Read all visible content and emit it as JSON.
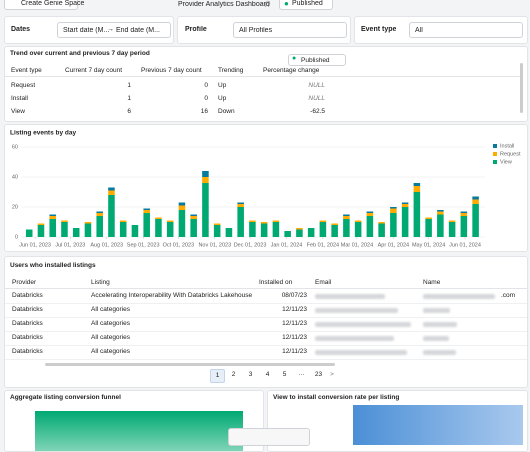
{
  "header": {
    "button": "Create Genie Space",
    "title": "Provider Analytics Dashboard",
    "status": "Published"
  },
  "filters": {
    "dates_label": "Dates",
    "start": "Start date (M...",
    "arrow": "→",
    "end": "End date (M...",
    "profile_label": "Profile",
    "profile_value": "All Profiles",
    "event_label": "Event type",
    "event_value": "All"
  },
  "trend": {
    "title": "Trend over current and previous 7 day period",
    "badge": "Published",
    "columns": [
      "Event type",
      "Current 7 day count",
      "Previous 7 day count",
      "Trending",
      "Percentage change"
    ],
    "rows": [
      [
        "Request",
        "1",
        "0",
        "Up",
        "NULL"
      ],
      [
        "Install",
        "1",
        "0",
        "Up",
        "NULL"
      ],
      [
        "View",
        "6",
        "16",
        "Down",
        "-62.5"
      ]
    ]
  },
  "chart_data": {
    "type": "bar",
    "title": "Listing events by day",
    "stacked": true,
    "x": [
      "2023-05-27",
      "2023-06-06",
      "2023-06-16",
      "2023-06-26",
      "2023-07-06",
      "2023-07-16",
      "2023-07-26",
      "2023-08-05",
      "2023-08-15",
      "2023-08-25",
      "2023-09-04",
      "2023-09-14",
      "2023-09-24",
      "2023-10-04",
      "2023-10-14",
      "2023-10-24",
      "2023-11-03",
      "2023-11-13",
      "2023-11-23",
      "2023-12-03",
      "2023-12-13",
      "2023-12-23",
      "2024-01-02",
      "2024-01-12",
      "2024-01-22",
      "2024-02-01",
      "2024-02-11",
      "2024-02-21",
      "2024-03-02",
      "2024-03-12",
      "2024-03-22",
      "2024-04-01",
      "2024-04-11",
      "2024-04-21",
      "2024-05-01",
      "2024-05-11",
      "2024-05-21",
      "2024-05-31",
      "2024-06-10"
    ],
    "series": [
      {
        "name": "View",
        "color": "#00a972",
        "values": [
          5,
          8,
          12,
          10,
          6,
          9,
          14,
          28,
          10,
          8,
          16,
          12,
          10,
          18,
          12,
          36,
          8,
          6,
          20,
          10,
          9,
          10,
          4,
          5,
          6,
          10,
          8,
          12,
          10,
          14,
          9,
          16,
          20,
          30,
          12,
          15,
          10,
          14,
          22
        ]
      },
      {
        "name": "Request",
        "color": "#ffab00",
        "values": [
          0,
          1,
          2,
          1,
          0,
          1,
          2,
          3,
          1,
          0,
          2,
          1,
          1,
          3,
          2,
          4,
          1,
          0,
          2,
          1,
          1,
          1,
          0,
          1,
          0,
          1,
          1,
          2,
          1,
          2,
          1,
          3,
          2,
          4,
          1,
          2,
          1,
          2,
          3
        ]
      },
      {
        "name": "Install",
        "color": "#077a9d",
        "values": [
          0,
          0,
          1,
          0,
          0,
          0,
          1,
          2,
          0,
          0,
          1,
          0,
          0,
          2,
          1,
          4,
          0,
          0,
          1,
          0,
          0,
          0,
          0,
          0,
          0,
          0,
          0,
          1,
          0,
          1,
          0,
          1,
          1,
          2,
          0,
          1,
          0,
          1,
          2
        ]
      }
    ],
    "legend_order": [
      "Install",
      "Request",
      "View"
    ],
    "xlim": [
      "2023-05-20",
      "2024-06-18"
    ],
    "xticks": [
      {
        "value": "2023-06-01",
        "label": "Jun 01, 2023"
      },
      {
        "value": "2023-07-01",
        "label": "Jul 01, 2023"
      },
      {
        "value": "2023-08-01",
        "label": "Aug 01, 2023"
      },
      {
        "value": "2023-09-01",
        "label": "Sep 01, 2023"
      },
      {
        "value": "2023-10-01",
        "label": "Oct 01, 2023"
      },
      {
        "value": "2023-11-01",
        "label": "Nov 01, 2023"
      },
      {
        "value": "2023-12-01",
        "label": "Dec 01, 2023"
      },
      {
        "value": "2024-01-01",
        "label": "Jan 01, 2024"
      },
      {
        "value": "2024-02-01",
        "label": "Feb 01, 2024"
      },
      {
        "value": "2024-03-01",
        "label": "Mar 01, 2024"
      },
      {
        "value": "2024-04-01",
        "label": "Apr 01, 2024"
      },
      {
        "value": "2024-05-01",
        "label": "May 01, 2024"
      },
      {
        "value": "2024-06-01",
        "label": "Jun 01, 2024"
      }
    ],
    "ylim": [
      0,
      60
    ],
    "yticks": [
      0,
      20,
      40,
      60
    ],
    "grid": true
  },
  "users": {
    "title": "Users who installed listings",
    "columns": [
      "Provider",
      "Listing",
      "Installed on",
      "Email",
      "Name"
    ],
    "rows": [
      [
        "Databricks",
        "Accelerating Interoperability With Databricks Lakehouse",
        "08/07/23"
      ],
      [
        "Databricks",
        "All categories",
        "12/11/23"
      ],
      [
        "Databricks",
        "All categories",
        "12/11/23"
      ],
      [
        "Databricks",
        "All categories",
        "12/11/23"
      ],
      [
        "Databricks",
        "All categories",
        "12/11/23"
      ]
    ],
    "name_suffix": ".com",
    "pages": [
      "1",
      "2",
      "3",
      "4",
      "5",
      "···",
      "23"
    ],
    "next": ">"
  },
  "funnel": {
    "title": "Aggregate listing conversion funnel"
  },
  "conversion": {
    "title": "View to install conversion rate per listing"
  }
}
